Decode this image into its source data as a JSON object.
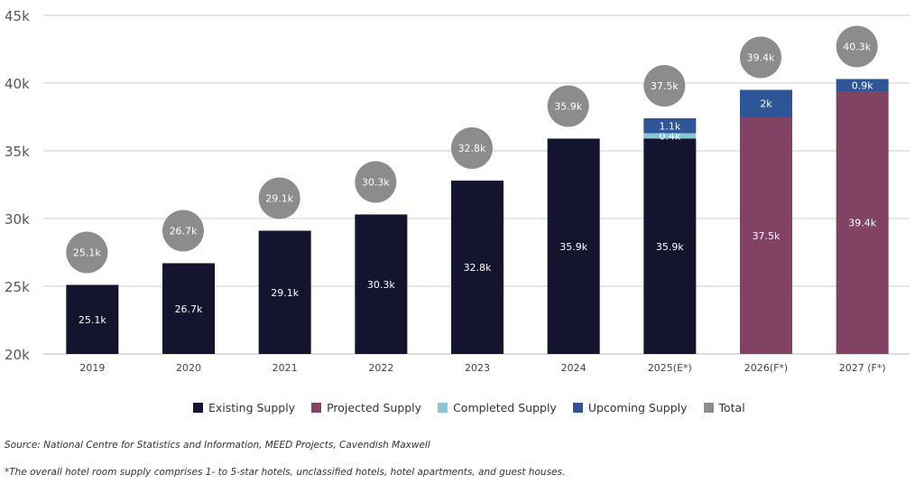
{
  "chart_data": {
    "type": "bar",
    "stacked": true,
    "title": "",
    "xlabel": "",
    "ylabel": "",
    "ylim": [
      20000,
      45000
    ],
    "yticks": [
      20000,
      25000,
      30000,
      35000,
      40000,
      45000
    ],
    "ytick_labels": [
      "20k",
      "25k",
      "30k",
      "35k",
      "40k",
      "45k"
    ],
    "grid": true,
    "categories": [
      "2019",
      "2020",
      "2021",
      "2022",
      "2023",
      "2024",
      "2025(E*)",
      "2026(F*)",
      "2027 (F*)"
    ],
    "series": [
      {
        "name": "Existing Supply",
        "color": "#14142f",
        "values": [
          25100,
          26700,
          29100,
          30300,
          32800,
          35900,
          35900,
          null,
          null
        ],
        "labels": [
          "25.1k",
          "26.7k",
          "29.1k",
          "30.3k",
          "32.8k",
          "35.9k",
          "35.9k",
          null,
          null
        ]
      },
      {
        "name": "Projected Supply",
        "color": "#824263",
        "values": [
          null,
          null,
          null,
          null,
          null,
          null,
          null,
          37500,
          39400
        ],
        "labels": [
          null,
          null,
          null,
          null,
          null,
          null,
          null,
          "37.5k",
          "39.4k"
        ]
      },
      {
        "name": "Completed Supply",
        "color": "#8cc5d8",
        "values": [
          null,
          null,
          null,
          null,
          null,
          null,
          400,
          null,
          null
        ],
        "labels": [
          null,
          null,
          null,
          null,
          null,
          null,
          "0.4k",
          null,
          null
        ]
      },
      {
        "name": "Upcoming Supply",
        "color": "#2e5596",
        "values": [
          null,
          null,
          null,
          null,
          null,
          null,
          1100,
          2000,
          900
        ],
        "labels": [
          null,
          null,
          null,
          null,
          null,
          null,
          "1.1k",
          "2k",
          "0.9k"
        ]
      }
    ],
    "totals": {
      "name": "Total",
      "color": "#8d8b8c",
      "values": [
        25100,
        26700,
        29100,
        30300,
        32800,
        35900,
        37500,
        39400,
        40300
      ],
      "labels": [
        "25.1k",
        "26.7k",
        "29.1k",
        "30.3k",
        "32.8k",
        "35.9k",
        "37.5k",
        "39.4k",
        "40.3k"
      ]
    },
    "legend": {
      "position": "bottom",
      "entries": [
        {
          "label": "Existing Supply",
          "color": "#14142f"
        },
        {
          "label": "Projected Supply",
          "color": "#824263"
        },
        {
          "label": "Completed Supply",
          "color": "#8cc5d8"
        },
        {
          "label": "Upcoming Supply",
          "color": "#2e5596"
        },
        {
          "label": "Total",
          "color": "#8d8b8c"
        }
      ]
    }
  },
  "notes": {
    "source": "Source: National Centre for Statistics and Information, MEED Projects, Cavendish Maxwell",
    "footnote": "*The overall hotel room supply comprises 1- to 5-star hotels, unclassified hotels, hotel apartments, and guest houses."
  }
}
